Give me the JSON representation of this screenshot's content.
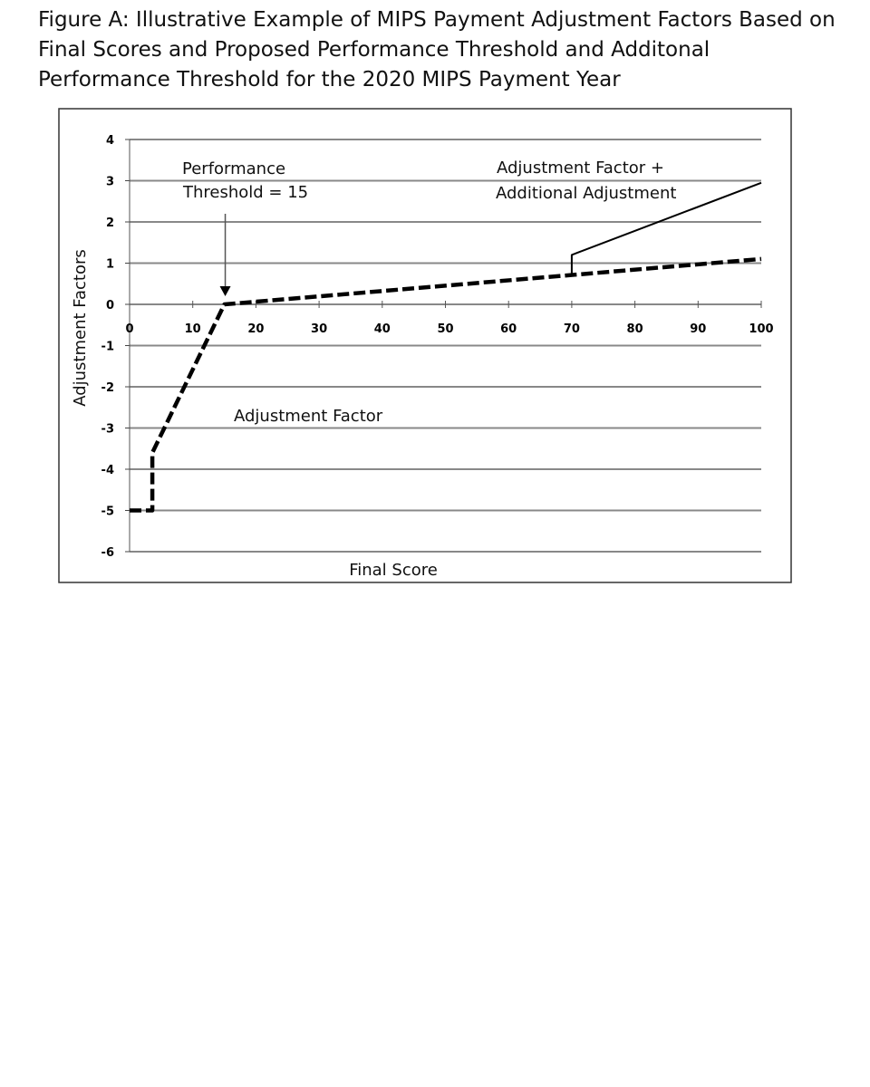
{
  "figure": {
    "title": "Figure A: Illustrative Example of MIPS Payment Adjustment Factors Based on Final Scores and Proposed Performance Threshold and Additonal Performance Threshold for the 2020 MIPS Payment Year"
  },
  "chart_data": {
    "type": "line",
    "title": "",
    "xlabel": "Final Score",
    "ylabel": "Adjustment Factors",
    "xlim": [
      0,
      100
    ],
    "ylim": [
      -6,
      4
    ],
    "x_ticks": [
      "0",
      "10",
      "20",
      "30",
      "40",
      "50",
      "60",
      "70",
      "80",
      "90",
      "100"
    ],
    "y_ticks": [
      "4",
      "3",
      "2",
      "1",
      "0",
      "-1",
      "-2",
      "-3",
      "-4",
      "-5",
      "-6"
    ],
    "grid": true,
    "series": [
      {
        "style": "dashed",
        "points": [
          [
            0,
            -5
          ],
          [
            3.6,
            -5
          ],
          [
            3.6,
            -3.6
          ],
          [
            15,
            0
          ],
          [
            100,
            1.1
          ]
        ]
      },
      {
        "style": "solid",
        "points": [
          [
            70,
            0.7
          ],
          [
            70,
            1.2
          ],
          [
            100,
            2.95
          ]
        ]
      }
    ],
    "annotations": {
      "performance_threshold": {
        "line1": "Performance",
        "line2": "Threshold = 15",
        "x": 15
      },
      "additional": {
        "line1": "Adjustment Factor +",
        "line2": "Additional Adjustment"
      },
      "adjustment_factor": "Adjustment Factor"
    },
    "colors": {
      "line": "#000000",
      "grid": "#888888",
      "frame": "#333333"
    }
  }
}
